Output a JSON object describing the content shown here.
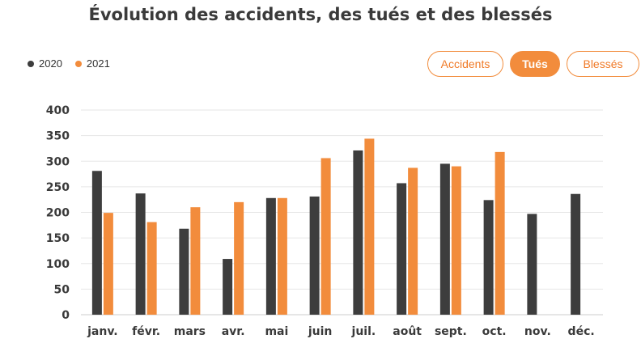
{
  "title": "Évolution des accidents, des tués et des blessés",
  "legend": [
    {
      "label": "2020",
      "color": "#3d3d3d"
    },
    {
      "label": "2021",
      "color": "#f28c3c"
    }
  ],
  "tabs": [
    {
      "label": "Accidents",
      "active": false
    },
    {
      "label": "Tués",
      "active": true
    },
    {
      "label": "Blessés",
      "active": false
    }
  ],
  "chart_data": {
    "type": "bar",
    "categories": [
      "janv.",
      "févr.",
      "mars",
      "avr.",
      "mai",
      "juin",
      "juil.",
      "août",
      "sept.",
      "oct.",
      "nov.",
      "déc."
    ],
    "series": [
      {
        "name": "2020",
        "color": "#3d3d3d",
        "values": [
          281,
          237,
          168,
          109,
          228,
          231,
          321,
          257,
          295,
          224,
          197,
          236
        ]
      },
      {
        "name": "2021",
        "color": "#f28c3c",
        "values": [
          199,
          181,
          210,
          220,
          228,
          306,
          344,
          287,
          290,
          318,
          null,
          null
        ]
      }
    ],
    "yticks": [
      "0",
      "50",
      "100",
      "150",
      "200",
      "250",
      "300",
      "350",
      "400"
    ],
    "ylim": [
      0,
      400
    ],
    "grid": true,
    "legend_position": "top-left"
  }
}
